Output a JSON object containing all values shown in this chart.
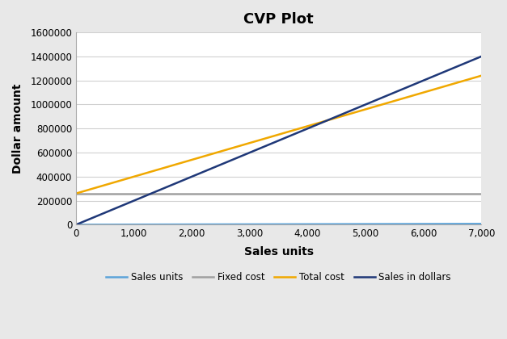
{
  "title": "CVP Plot",
  "xlabel": "Sales units",
  "ylabel": "Dollar amount",
  "fixed_cost": 260000,
  "variable_cost_per_unit": 140,
  "sales_price_per_unit": 200,
  "x_max": 7000,
  "y_max": 1600000,
  "y_tick_step": 200000,
  "x_tick_step": 1000,
  "legend_labels": [
    "Sales units",
    "Fixed cost",
    "Total cost",
    "Sales in dollars"
  ],
  "color_sales_units": "#5BA3D9",
  "color_fixed_cost": "#A0A0A0",
  "color_total_cost": "#F0A800",
  "color_sales_dollars": "#1F3878",
  "bg_color": "#E8E8E8",
  "plot_bg_color": "#FFFFFF",
  "line_width": 1.8,
  "title_fontsize": 13,
  "axis_label_fontsize": 10,
  "tick_fontsize": 8.5,
  "legend_fontsize": 8.5
}
